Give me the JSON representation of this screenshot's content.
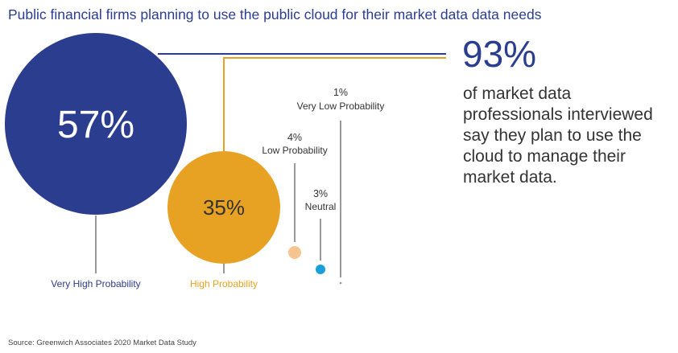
{
  "title": "Public financial firms planning to use the public cloud for their market data data needs",
  "highlight": {
    "value": "93%",
    "description": "of market data professionals interviewed say they plan to use the cloud to manage their market data."
  },
  "source": "Source: Greenwich Associates 2020 Market Data Study",
  "colors": {
    "very_high": "#2b3d8f",
    "high": "#e8a223",
    "low": "#f6c58f",
    "neutral": "#1a9fd9",
    "very_low": "#999999",
    "connector": "#333333"
  },
  "chart_data": {
    "type": "bubble",
    "title": "Public financial firms planning to use the public cloud for their market data data needs",
    "unit": "%",
    "categories": [
      "Very High Probability",
      "High Probability",
      "Low Probability",
      "Neutral",
      "Very Low Probability"
    ],
    "values": [
      57,
      35,
      4,
      3,
      1
    ],
    "labels": [
      "57%",
      "35%",
      "4%",
      "3%",
      "1%"
    ],
    "combined_total": {
      "categories": [
        "Very High Probability",
        "High Probability"
      ],
      "value": 93,
      "label": "93%"
    }
  }
}
